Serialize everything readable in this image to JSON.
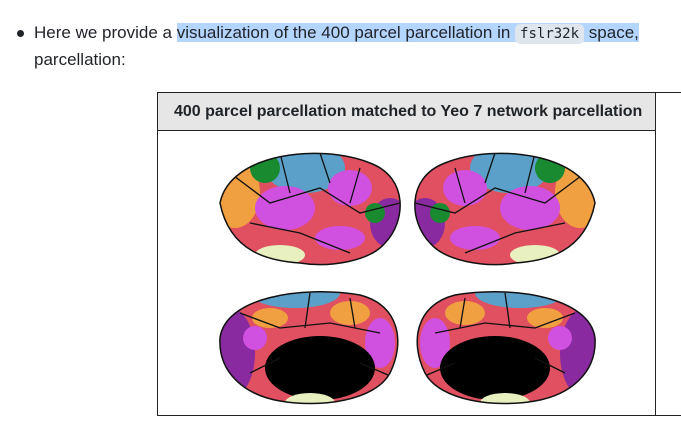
{
  "bullet": {
    "text_before": "Here we provide a",
    "highlighted": "visualization of the 400 parcel parcellation in",
    "code": "fslr32k",
    "after": "space,",
    "line2": "parcellation:"
  },
  "figure": {
    "header": "400 parcel parcellation matched to Yeo 7 network parcellation"
  }
}
